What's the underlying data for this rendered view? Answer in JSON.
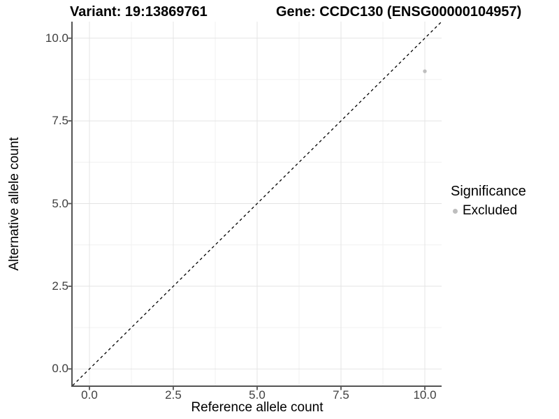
{
  "header": {
    "title_left": "Variant: 19:13869761",
    "title_right": "Gene: CCDC130 (ENSG00000104957)"
  },
  "chart_data": {
    "type": "scatter",
    "title": "Variant: 19:13869761   Gene: CCDC130 (ENSG00000104957)",
    "xlabel": "Reference allele count",
    "ylabel": "Alternative allele count",
    "xlim": [
      -0.5,
      10.5
    ],
    "ylim": [
      -0.5,
      10.5
    ],
    "x_major_ticks": [
      0,
      2.5,
      5,
      7.5,
      10
    ],
    "x_tick_labels": [
      "0.0",
      "2.5",
      "5.0",
      "7.5",
      "10.0"
    ],
    "y_major_ticks": [
      0,
      2.5,
      5,
      7.5,
      10
    ],
    "y_tick_labels": [
      "0.0",
      "2.5",
      "5.0",
      "7.5",
      "10.0"
    ],
    "x_minor_ticks": [
      1.25,
      3.75,
      6.25,
      8.75
    ],
    "y_minor_ticks": [
      1.25,
      3.75,
      6.25,
      8.75
    ],
    "grid": true,
    "identity_line": {
      "style": "dashed",
      "slope": 1,
      "intercept": 0,
      "color": "#000000"
    },
    "series": [
      {
        "name": "Excluded",
        "color": "#bebebe",
        "points": [
          {
            "x": 10,
            "y": 9
          }
        ]
      }
    ],
    "legend": {
      "title": "Significance",
      "position": "right",
      "items": [
        {
          "label": "Excluded",
          "color": "#bebebe"
        }
      ]
    },
    "colors": {
      "major_grid": "#e4e4e4",
      "minor_grid": "#f1f1f1",
      "axis_line": "#555555",
      "tick_text": "#404040"
    }
  }
}
